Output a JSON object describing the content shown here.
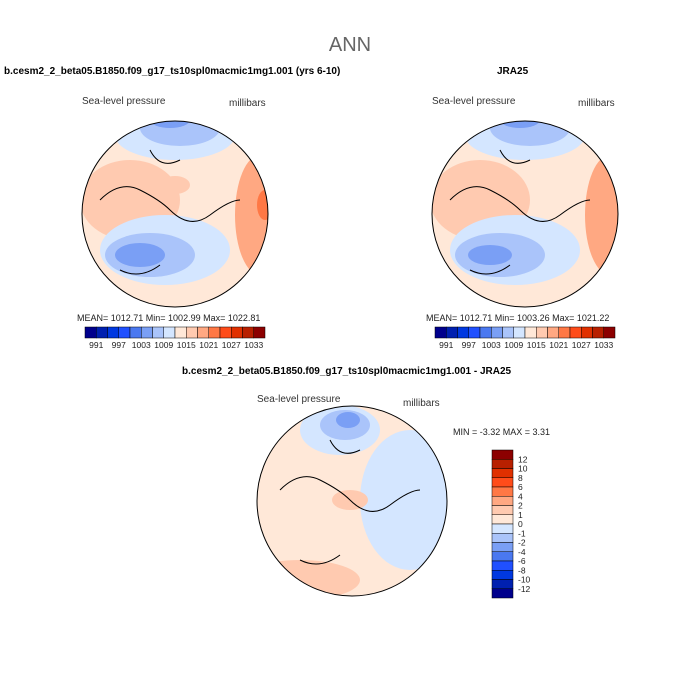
{
  "title": "ANN",
  "panels": [
    {
      "case": "b.cesm2_2_beta05.B1850.f09_g17_ts10spl0macmic1mg1.001 (yrs 6-10)",
      "variable": "Sea-level pressure",
      "units": "millibars",
      "stats": "MEAN= 1012.71   Min= 1002.99   Max= 1022.81"
    },
    {
      "case": "JRA25",
      "variable": "Sea-level pressure",
      "units": "millibars",
      "stats": "MEAN= 1012.71   Min= 1003.26   Max= 1021.22"
    },
    {
      "case": "b.cesm2_2_beta05.B1850.f09_g17_ts10spl0macmic1mg1.001 - JRA25",
      "variable": "Sea-level pressure",
      "units": "millibars",
      "stats": "MIN =   -3.32  MAX =    3.31"
    }
  ],
  "colorbar_abs": {
    "labels": [
      "991",
      "997",
      "1003",
      "1009",
      "1015",
      "1021",
      "1027",
      "1033"
    ]
  },
  "colorbar_diff": {
    "labels": [
      "12",
      "10",
      "8",
      "6",
      "4",
      "2",
      "1",
      "0",
      "-1",
      "-2",
      "-4",
      "-6",
      "-8",
      "-10",
      "-12"
    ]
  },
  "colors": [
    "#00008c",
    "#0020b0",
    "#0038e0",
    "#2050ff",
    "#4a78f0",
    "#7a9ff5",
    "#aac4fa",
    "#d4e6ff",
    "#ffe8d8",
    "#ffcab0",
    "#ffa882",
    "#ff7845",
    "#ff4c1a",
    "#e03000",
    "#b82000",
    "#8c0000"
  ]
}
